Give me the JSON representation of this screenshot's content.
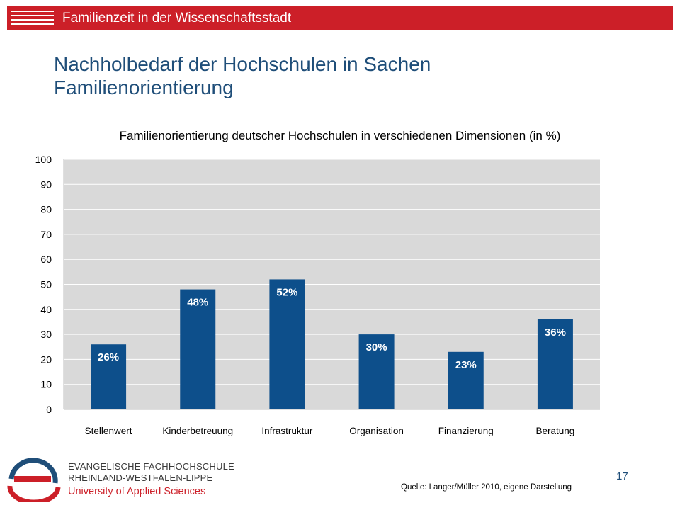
{
  "header": {
    "title": "Familienzeit in der Wissenschaftsstadt"
  },
  "slide": {
    "title_line1": "Nachholbedarf der Hochschulen in Sachen",
    "title_line2": "Familienorientierung"
  },
  "chart_data": {
    "type": "bar",
    "title": "Familienorientierung deutscher Hochschulen in verschiedenen Dimensionen (in %)",
    "categories": [
      "Stellenwert",
      "Kinderbetreuung",
      "Infrastruktur",
      "Organisation",
      "Finanzierung",
      "Beratung"
    ],
    "values": [
      26,
      48,
      52,
      30,
      23,
      36
    ],
    "data_labels": [
      "26%",
      "48%",
      "52%",
      "30%",
      "23%",
      "36%"
    ],
    "ylim": [
      0,
      100
    ],
    "yticks": [
      0,
      10,
      20,
      30,
      40,
      50,
      60,
      70,
      80,
      90,
      100
    ],
    "grid": true,
    "legend": "none",
    "colors": {
      "bar": "#0d4f8b",
      "plot_background": "#d9d9d9",
      "gridline": "#ffffff"
    }
  },
  "footer": {
    "org_line1": "EVANGELISCHE FACHHOCHSCHULE",
    "org_line2": "RHEINLAND-WESTFALEN-LIPPE",
    "org_line3": "University of Applied Sciences",
    "page_number": "17",
    "source": "Quelle: Langer/Müller 2010, eigene Darstellung"
  },
  "icons": {
    "header": "menu-lines-icon",
    "logo": "efh-logo-icon"
  },
  "colors": {
    "brand_red": "#cc1f28",
    "brand_blue": "#1f4e79"
  }
}
